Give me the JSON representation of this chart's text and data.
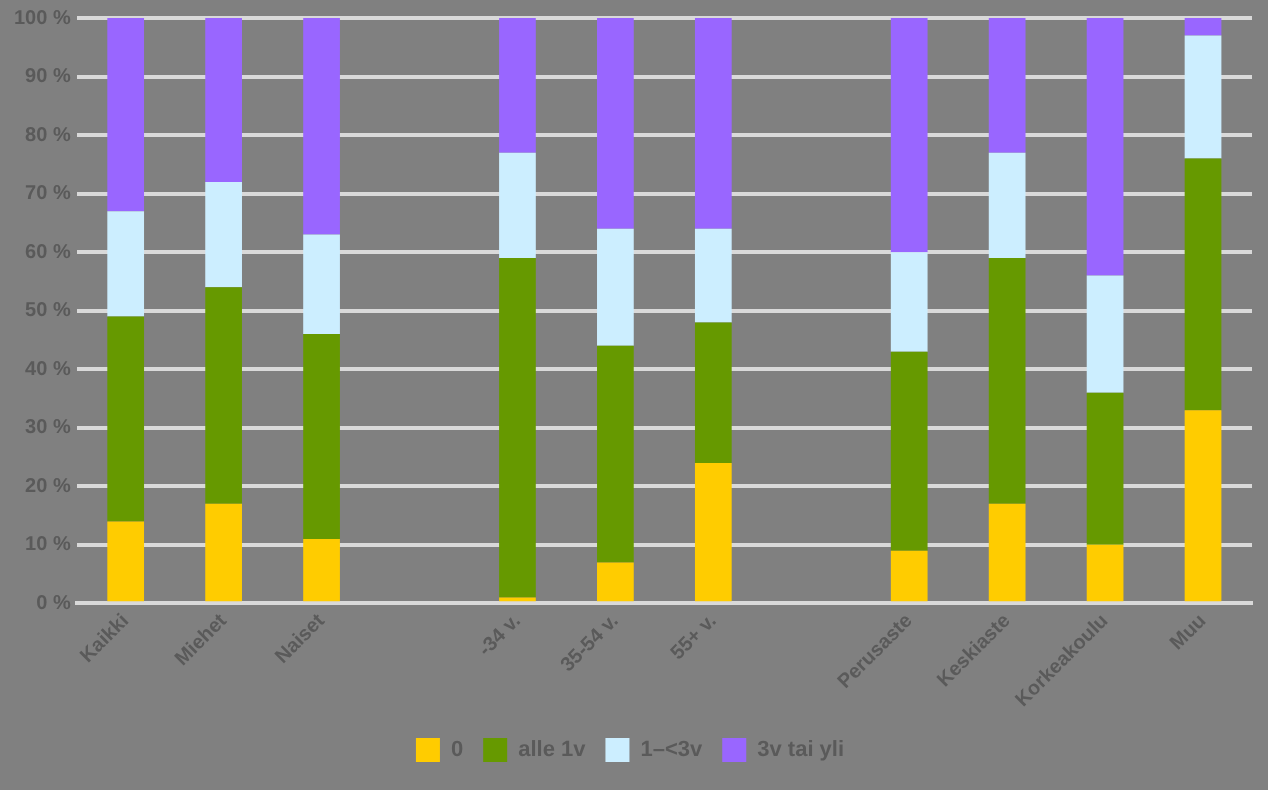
{
  "chart_data": {
    "type": "bar",
    "stacked": true,
    "categories": [
      "Kaikki",
      "Miehet",
      "Naiset",
      null,
      "-34 v.",
      "35-54 v.",
      "55+ v.",
      null,
      "Perusaste",
      "Keskiaste",
      "Korkeakoulu",
      "Muu"
    ],
    "series": [
      {
        "name": "0",
        "color": "#ffcc00",
        "values": [
          14,
          17,
          11,
          null,
          1,
          7,
          24,
          null,
          9,
          17,
          10,
          33
        ]
      },
      {
        "name": "alle 1v",
        "color": "#669900",
        "values": [
          35,
          37,
          35,
          null,
          58,
          37,
          24,
          null,
          34,
          42,
          26,
          43
        ]
      },
      {
        "name": "1–<3v",
        "color": "#cceeff",
        "values": [
          18,
          18,
          17,
          null,
          18,
          20,
          16,
          null,
          17,
          18,
          20,
          21
        ]
      },
      {
        "name": "3v tai yli",
        "color": "#9966ff",
        "values": [
          33,
          28,
          37,
          null,
          23,
          36,
          36,
          null,
          40,
          23,
          44,
          3
        ]
      }
    ],
    "ylim": [
      0,
      100
    ],
    "yticks": [
      {
        "value": 0,
        "label": "0 %"
      },
      {
        "value": 10,
        "label": "10 %"
      },
      {
        "value": 20,
        "label": "20 %"
      },
      {
        "value": 30,
        "label": "30 %"
      },
      {
        "value": 40,
        "label": "40 %"
      },
      {
        "value": 50,
        "label": "50 %"
      },
      {
        "value": 60,
        "label": "60 %"
      },
      {
        "value": 70,
        "label": "70 %"
      },
      {
        "value": 80,
        "label": "80 %"
      },
      {
        "value": 90,
        "label": "90 %"
      },
      {
        "value": 100,
        "label": "100 %"
      }
    ],
    "grid": "y",
    "legend": "bottom"
  }
}
